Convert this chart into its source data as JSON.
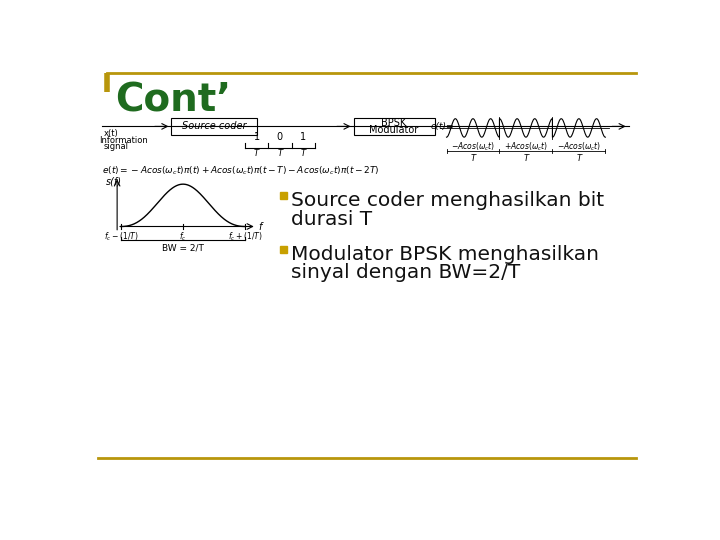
{
  "title": "Cont’",
  "title_color": "#1F6B1F",
  "bg_color": "#FFFFFF",
  "border_color": "#B8960C",
  "bullet1_line1": "Source coder menghasilkan bit",
  "bullet1_line2": "durasi T",
  "bullet2_line1": "Modulator BPSK menghasilkan",
  "bullet2_line2": "sinyal dengan BW=2/T",
  "bullet_color": "#111111",
  "bullet_marker_color": "#C8A000",
  "diagram_color": "#888888",
  "text_color": "#444444"
}
